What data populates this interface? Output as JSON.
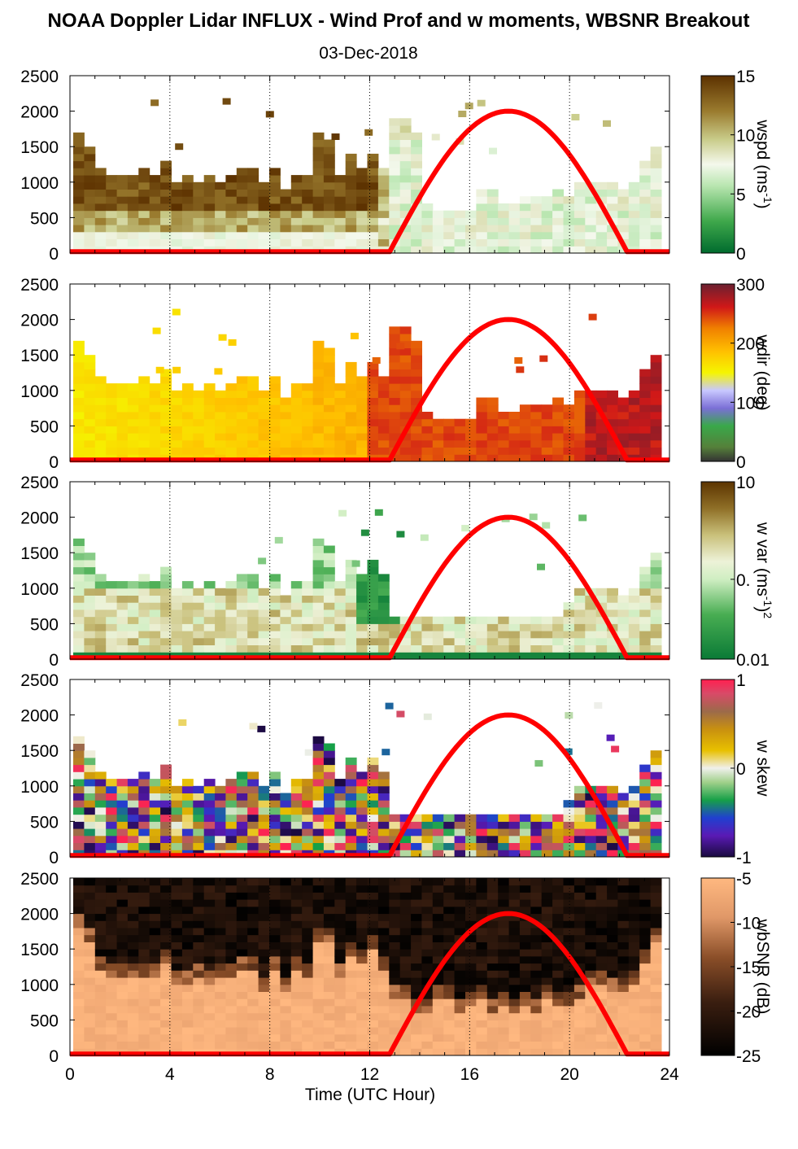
{
  "title": "NOAA Doppler Lidar INFLUX - Wind Prof and w moments, WBSNR Breakout",
  "subtitle": "03-Dec-2018",
  "x_axis": {
    "label": "Time (UTC Hour)",
    "ticks": [
      "0",
      "4",
      "8",
      "12",
      "16",
      "20",
      "24"
    ],
    "range": [
      0,
      24
    ]
  },
  "y_axis": {
    "ticks": [
      "0",
      "500",
      "1000",
      "1500",
      "2000",
      "2500"
    ],
    "range": [
      0,
      2500
    ]
  },
  "colorbars": [
    {
      "label": "wspd (ms",
      "label_sup": "-1",
      "label_end": ")",
      "ticks": [
        "0",
        "5",
        "10",
        "15"
      ]
    },
    {
      "label": "wdir (deg)",
      "label_sup": "",
      "label_end": "",
      "ticks": [
        "0",
        "100",
        "200",
        "300"
      ]
    },
    {
      "label": "w var (ms",
      "label_sup": "-1",
      "label_end": ")",
      "label_sup2": "2",
      "ticks": [
        "0.01",
        "0.",
        "10"
      ]
    },
    {
      "label": "w skew",
      "label_sup": "",
      "label_end": "",
      "ticks": [
        "-1",
        "0",
        "1"
      ]
    },
    {
      "label": "wbSNR (dB)",
      "label_sup": "",
      "label_end": "",
      "ticks": [
        "-25",
        "-20",
        "-15",
        "-10",
        "-5"
      ]
    }
  ],
  "chart_data": [
    {
      "type": "heatmap",
      "variable": "wspd",
      "colorbar_range": [
        0,
        15
      ],
      "colormap": "green-white-brown",
      "x_range": [
        0,
        24
      ],
      "y_range": [
        0,
        2500
      ],
      "sun_elevation_curve": {
        "color": "#ff0000",
        "start_hour": 12.8,
        "peak_hour": 17.6,
        "end_hour": 22.3,
        "peak_height": 2000
      },
      "profile_tops_m": [
        1700,
        1500,
        1150,
        1050,
        1050,
        1050,
        1150,
        1100,
        1250,
        1000,
        1050,
        1000,
        1050,
        1000,
        1050,
        1150,
        1200,
        950,
        1150,
        900,
        1100,
        1050,
        1650,
        1600,
        1100,
        1400,
        1200,
        1350,
        1200,
        1900,
        1900,
        1650,
        700,
        600,
        550,
        600,
        550,
        900,
        850,
        700,
        650,
        750,
        750,
        750,
        900,
        800,
        950,
        950,
        1000,
        950,
        900,
        950,
        1300,
        1450
      ],
      "description_of_values": "left side (0-12 h) high speeds 12-15 m/s below ~1200 m; after 13 h mostly 5-9 m/s"
    },
    {
      "type": "heatmap",
      "variable": "wdir",
      "colorbar_range": [
        0,
        360
      ],
      "colormap": "dark-green-blue-yellow-orange-red",
      "x_range": [
        0,
        24
      ],
      "y_range": [
        0,
        2500
      ],
      "sun_elevation_curve": {
        "color": "#ff0000",
        "start_hour": 12.8,
        "peak_hour": 17.6,
        "end_hour": 22.3,
        "peak_height": 2000
      },
      "description_of_values": "~230-260 deg (yellow/orange) early, rising to ~300-330 deg (red) after 13 h, ~340 deg near 23 h"
    },
    {
      "type": "heatmap",
      "variable": "w var",
      "colorbar_range": [
        0.01,
        10
      ],
      "scale": "log",
      "colormap": "green-white-brown",
      "x_range": [
        0,
        24
      ],
      "y_range": [
        0,
        2500
      ],
      "sun_elevation_curve": {
        "color": "#ff0000",
        "start_hour": 12.8,
        "peak_hour": 17.6,
        "end_hour": 22.3,
        "peak_height": 2000
      }
    },
    {
      "type": "heatmap",
      "variable": "w skew",
      "colorbar_range": [
        -1,
        1
      ],
      "colormap": "purple-blue-green-white-yellow-brown-red",
      "x_range": [
        0,
        24
      ],
      "y_range": [
        0,
        2500
      ],
      "sun_elevation_curve": {
        "color": "#ff0000",
        "start_hour": 12.8,
        "peak_hour": 17.6,
        "end_hour": 22.3,
        "peak_height": 2000
      }
    },
    {
      "type": "heatmap",
      "variable": "wbSNR",
      "colorbar_range": [
        -25,
        -5
      ],
      "colormap": "black-brown-peach",
      "x_range": [
        0,
        24
      ],
      "y_range": [
        0,
        2500
      ],
      "sun_elevation_curve": {
        "color": "#ff0000",
        "start_hour": 12.8,
        "peak_hour": 17.6,
        "end_hour": 22.3,
        "peak_height": 2000
      },
      "description_of_values": "high SNR (-5 to -10 dB) in lower ~1000-1500 m, very low (-25 dB) above"
    }
  ]
}
